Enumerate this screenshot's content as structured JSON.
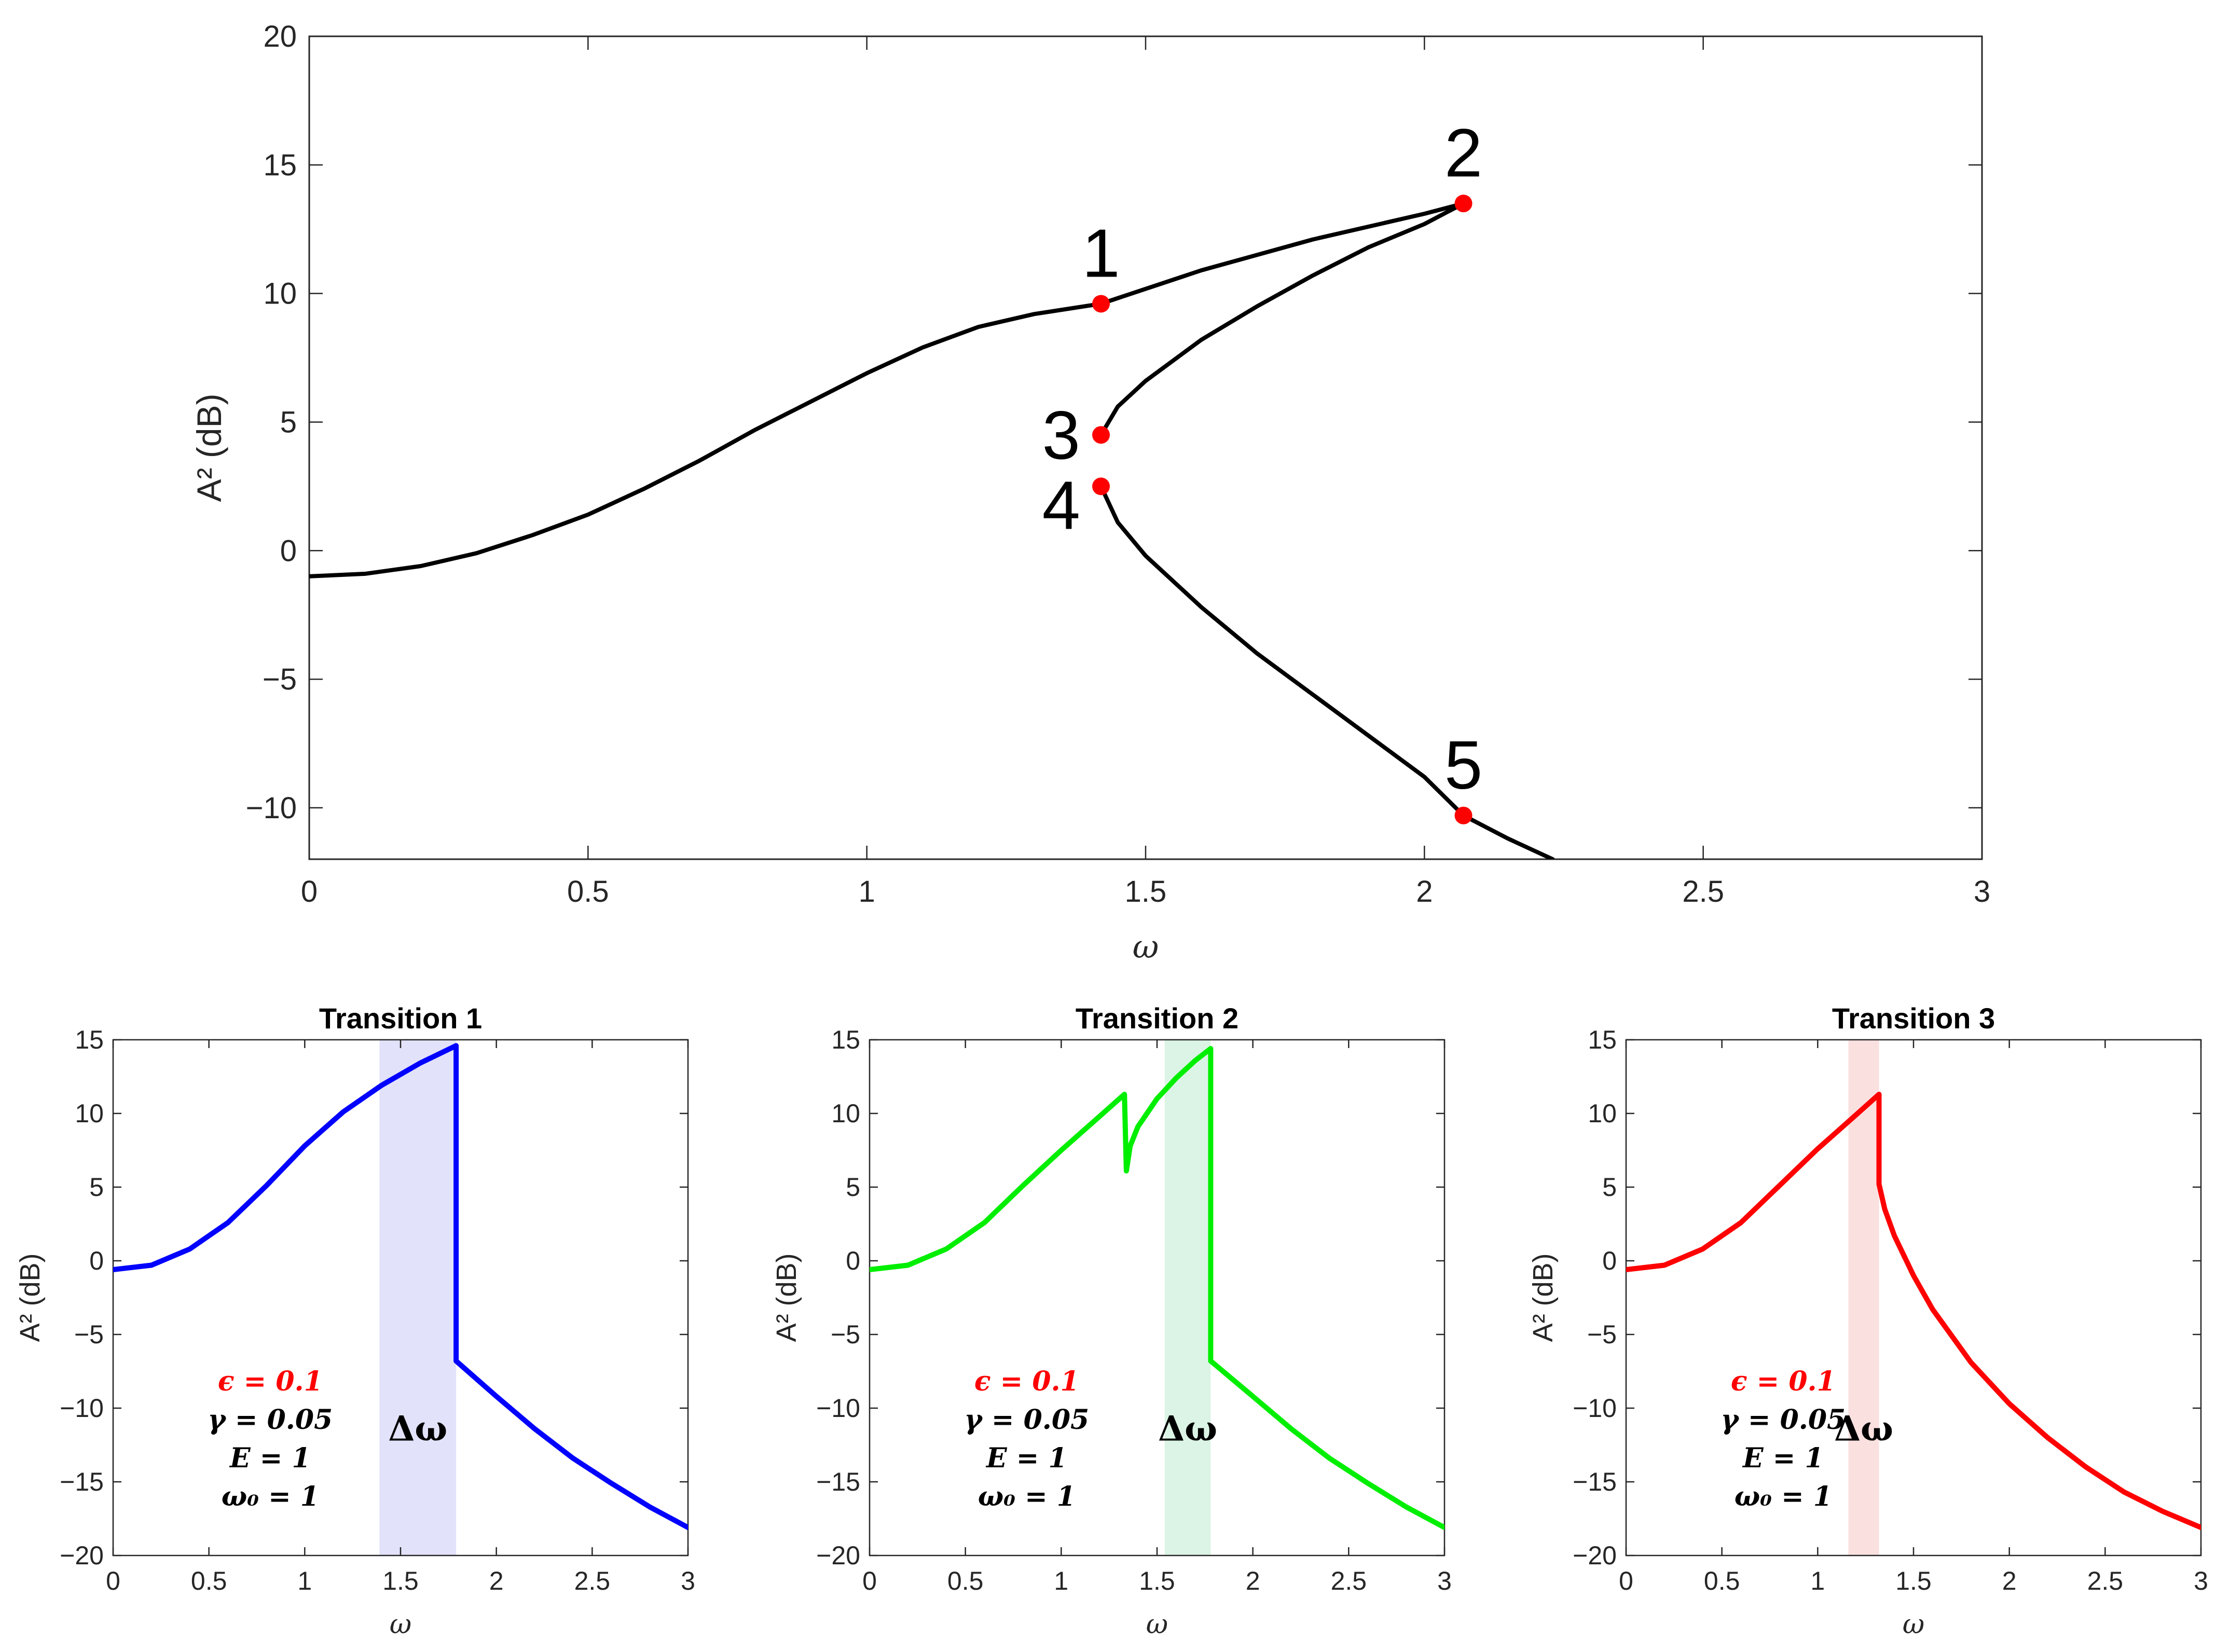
{
  "chart_data": [
    {
      "type": "line",
      "xlabel": "ω",
      "ylabel": "A² (dB)",
      "xlim": [
        0,
        3
      ],
      "ylim": [
        -12,
        20
      ],
      "xticks": [
        "0",
        "0.5",
        "1",
        "1.5",
        "2",
        "2.5",
        "3"
      ],
      "yticks": [
        "−10",
        "−5",
        "0",
        "5",
        "10",
        "15",
        "20"
      ],
      "grid": false,
      "series": [
        {
          "color": "#000000",
          "x": [
            0,
            0.1,
            0.2,
            0.3,
            0.4,
            0.5,
            0.6,
            0.7,
            0.8,
            0.9,
            1.0,
            1.1,
            1.2,
            1.3,
            1.42,
            1.6,
            1.8,
            2.0,
            2.07
          ],
          "y": [
            -1.0,
            -0.9,
            -0.6,
            -0.1,
            0.6,
            1.4,
            2.4,
            3.5,
            4.7,
            5.8,
            6.9,
            7.9,
            8.7,
            9.2,
            9.6,
            10.9,
            12.1,
            13.1,
            13.5
          ]
        },
        {
          "color": "#000000",
          "x": [
            2.07,
            2.0,
            1.9,
            1.8,
            1.7,
            1.6,
            1.5,
            1.45,
            1.42
          ],
          "y": [
            13.5,
            12.7,
            11.8,
            10.7,
            9.5,
            8.2,
            6.6,
            5.6,
            4.5
          ]
        },
        {
          "color": "#000000",
          "x": [
            1.42,
            1.45,
            1.5,
            1.6,
            1.7,
            1.8,
            1.9,
            2.0,
            2.07,
            2.15,
            2.23
          ],
          "y": [
            2.5,
            1.1,
            -0.2,
            -2.2,
            -4.0,
            -5.6,
            -7.2,
            -8.8,
            -10.3,
            -11.2,
            -12.0
          ]
        }
      ],
      "points": [
        {
          "label": "1",
          "x": 1.42,
          "y": 9.6
        },
        {
          "label": "2",
          "x": 2.07,
          "y": 13.5
        },
        {
          "label": "3",
          "x": 1.42,
          "y": 4.5
        },
        {
          "label": "4",
          "x": 1.42,
          "y": 2.5
        },
        {
          "label": "5",
          "x": 2.07,
          "y": -10.3
        }
      ],
      "point_color": "#ff0000"
    },
    {
      "type": "line",
      "title": "Transition 1",
      "xlabel": "ω",
      "ylabel": "A² (dB)",
      "xlim": [
        0,
        3
      ],
      "ylim": [
        -20,
        15
      ],
      "xticks": [
        "0",
        "0.5",
        "1",
        "1.5",
        "2",
        "2.5",
        "3"
      ],
      "yticks": [
        "−20",
        "−15",
        "−10",
        "−5",
        "0",
        "5",
        "10",
        "15"
      ],
      "color": "#0000ff",
      "band": {
        "x0": 1.39,
        "x1": 1.79,
        "color": "#e2e2fa"
      },
      "band_label": "Δω",
      "params": [
        "ϵ = 0.1",
        "γ = 0.05",
        "E = 1",
        "ω₀ = 1"
      ],
      "x": [
        0,
        0.2,
        0.4,
        0.6,
        0.8,
        1.0,
        1.2,
        1.4,
        1.6,
        1.79,
        1.79,
        2.0,
        2.2,
        2.4,
        2.6,
        2.8,
        3.0
      ],
      "y": [
        -0.6,
        -0.3,
        0.8,
        2.6,
        5.1,
        7.8,
        10.1,
        11.9,
        13.4,
        14.6,
        -6.8,
        -9.2,
        -11.4,
        -13.4,
        -15.1,
        -16.7,
        -18.1
      ]
    },
    {
      "type": "line",
      "title": "Transition 2",
      "xlabel": "ω",
      "ylabel": "A² (dB)",
      "xlim": [
        0,
        3
      ],
      "ylim": [
        -20,
        15
      ],
      "xticks": [
        "0",
        "0.5",
        "1",
        "1.5",
        "2",
        "2.5",
        "3"
      ],
      "yticks": [
        "−20",
        "−15",
        "−10",
        "−5",
        "0",
        "5",
        "10",
        "15"
      ],
      "color": "#00ee00",
      "band": {
        "x0": 1.54,
        "x1": 1.78,
        "color": "#dbf4e5"
      },
      "band_label": "Δω",
      "params": [
        "ϵ = 0.1",
        "γ = 0.05",
        "E = 1",
        "ω₀ = 1"
      ],
      "x": [
        0,
        0.2,
        0.4,
        0.6,
        0.8,
        1.0,
        1.2,
        1.33,
        1.34,
        1.36,
        1.4,
        1.5,
        1.6,
        1.7,
        1.78,
        1.78,
        2.0,
        2.2,
        2.4,
        2.6,
        2.8,
        3.0
      ],
      "y": [
        -0.6,
        -0.3,
        0.8,
        2.6,
        5.1,
        7.5,
        9.8,
        11.3,
        6.1,
        7.8,
        9.1,
        11.0,
        12.4,
        13.6,
        14.4,
        -6.8,
        -9.2,
        -11.4,
        -13.4,
        -15.1,
        -16.7,
        -18.1
      ]
    },
    {
      "type": "line",
      "title": "Transition 3",
      "xlabel": "ω",
      "ylabel": "A² (dB)",
      "xlim": [
        0,
        3
      ],
      "ylim": [
        -20,
        15
      ],
      "xticks": [
        "0",
        "0.5",
        "1",
        "1.5",
        "2",
        "2.5",
        "3"
      ],
      "yticks": [
        "−20",
        "−15",
        "−10",
        "−5",
        "0",
        "5",
        "10",
        "15"
      ],
      "color": "#ff0000",
      "band": {
        "x0": 1.16,
        "x1": 1.32,
        "color": "#fbe0e0"
      },
      "band_label": "Δω",
      "params": [
        "ϵ = 0.1",
        "γ = 0.05",
        "E = 1",
        "ω₀ = 1"
      ],
      "x": [
        0,
        0.2,
        0.4,
        0.6,
        0.8,
        1.0,
        1.2,
        1.32,
        1.32,
        1.35,
        1.4,
        1.5,
        1.6,
        1.8,
        2.0,
        2.2,
        2.4,
        2.6,
        2.8,
        3.0
      ],
      "y": [
        -0.6,
        -0.3,
        0.8,
        2.6,
        5.1,
        7.6,
        9.9,
        11.3,
        5.2,
        3.5,
        1.7,
        -1.0,
        -3.3,
        -6.9,
        -9.7,
        -12.0,
        -14.0,
        -15.7,
        -17.0,
        -18.1
      ]
    }
  ]
}
